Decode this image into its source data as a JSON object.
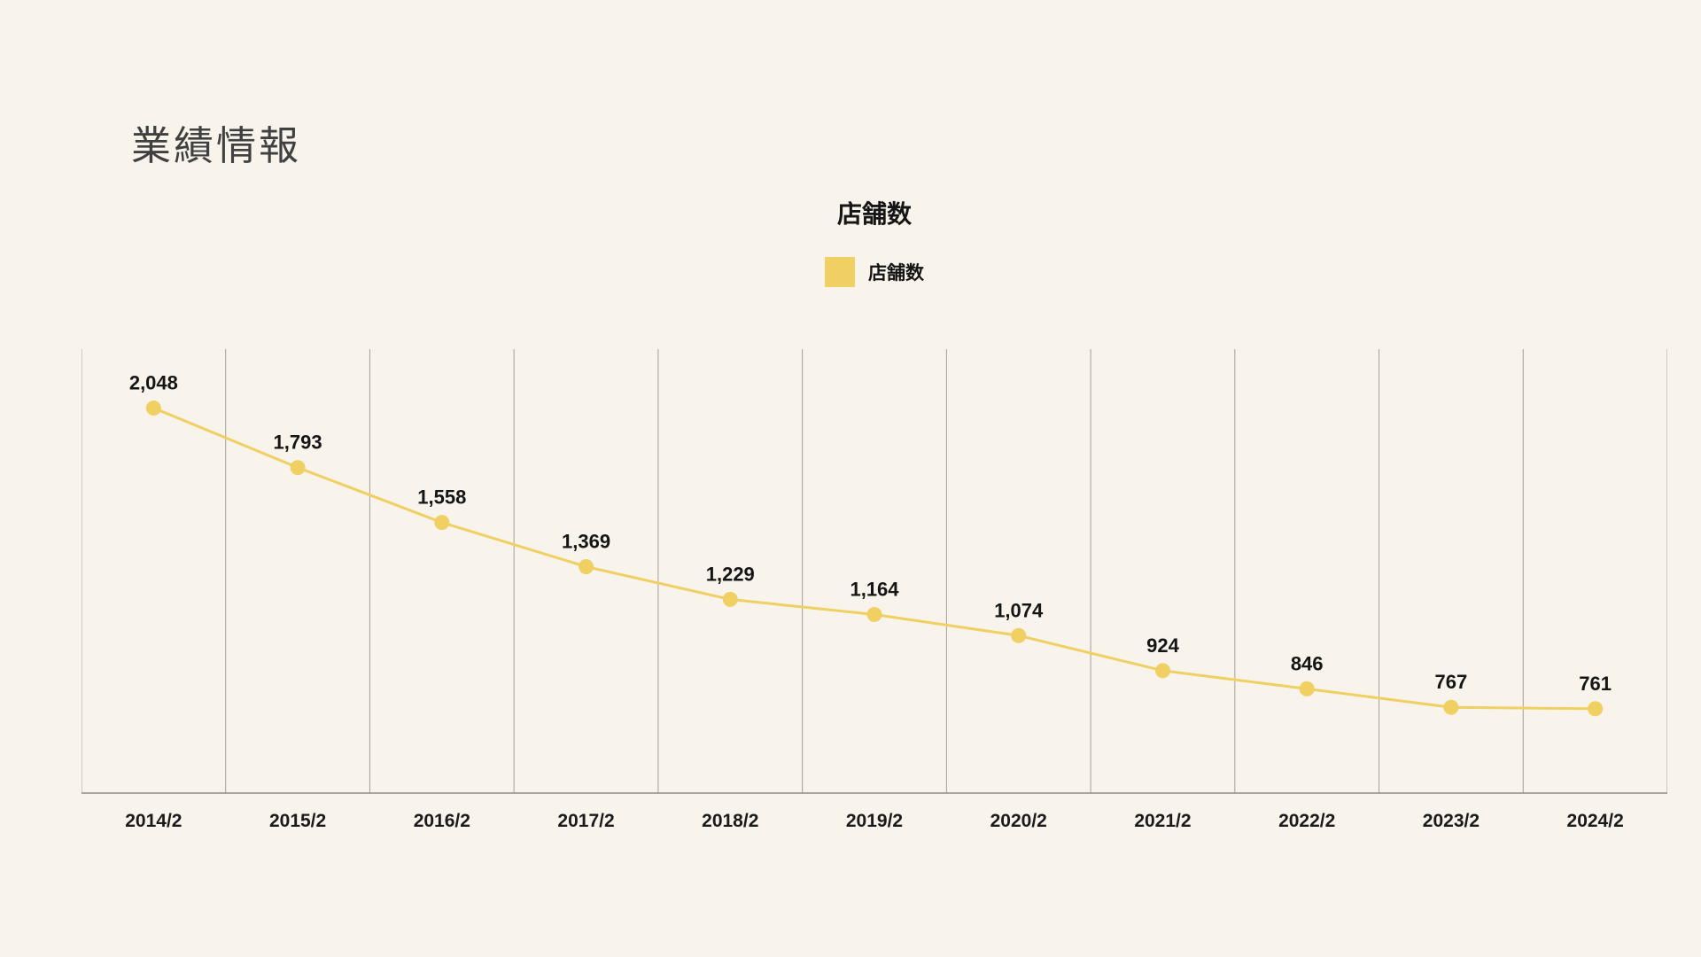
{
  "page": {
    "title": "業績情報"
  },
  "colors": {
    "background": "#f8f4ec",
    "series": "#f0cf63",
    "gridline": "#a3a099",
    "axis": "#8f8c85",
    "text": "#151515"
  },
  "chart_data": {
    "type": "line",
    "title": "店舗数",
    "legend": [
      {
        "label": "店舗数",
        "color": "#f0cf63"
      }
    ],
    "legend_position": "top-center",
    "categories": [
      "2014/2",
      "2015/2",
      "2016/2",
      "2017/2",
      "2018/2",
      "2019/2",
      "2020/2",
      "2021/2",
      "2022/2",
      "2023/2",
      "2024/2"
    ],
    "series": [
      {
        "name": "店舗数",
        "values": [
          2048,
          1793,
          1558,
          1369,
          1229,
          1164,
          1074,
          924,
          846,
          767,
          761
        ]
      }
    ],
    "value_labels": [
      "2,048",
      "1,793",
      "1,558",
      "1,369",
      "1,229",
      "1,164",
      "1,074",
      "924",
      "846",
      "767",
      "761"
    ],
    "xlabel": "",
    "ylabel": "",
    "ylim": [
      400,
      2300
    ],
    "grid": "vertical-only",
    "marker": "circle"
  }
}
